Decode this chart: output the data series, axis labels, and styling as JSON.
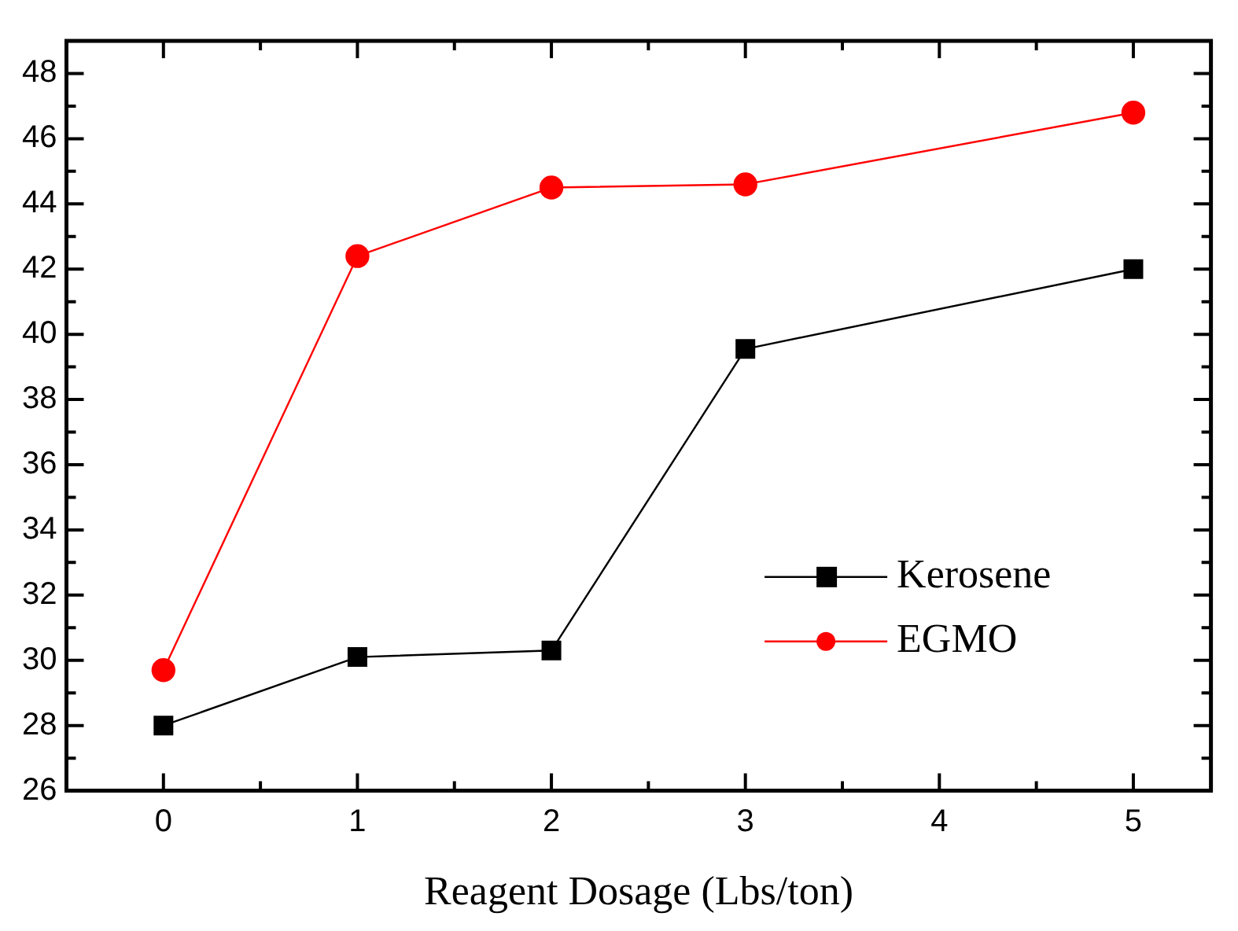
{
  "chart_data": {
    "type": "line",
    "xlabel": "Reagent Dosage (Lbs/ton)",
    "x": [
      0,
      1,
      2,
      3,
      5
    ],
    "xlim": [
      -0.5,
      5.4
    ],
    "xticks": [
      0,
      1,
      2,
      3,
      4,
      5
    ],
    "ylim": [
      26,
      49
    ],
    "yticks": [
      26,
      28,
      30,
      32,
      34,
      36,
      38,
      40,
      42,
      44,
      46,
      48
    ],
    "series": [
      {
        "name": "Kerosene",
        "color": "#000000",
        "marker": "square",
        "values": [
          28.0,
          30.1,
          30.3,
          39.55,
          42.0
        ]
      },
      {
        "name": "EGMO",
        "color": "#ff0000",
        "marker": "circle",
        "values": [
          29.7,
          42.4,
          44.5,
          44.6,
          46.8
        ]
      }
    ],
    "legend": "right",
    "grid": false,
    "line_style": "solid"
  }
}
